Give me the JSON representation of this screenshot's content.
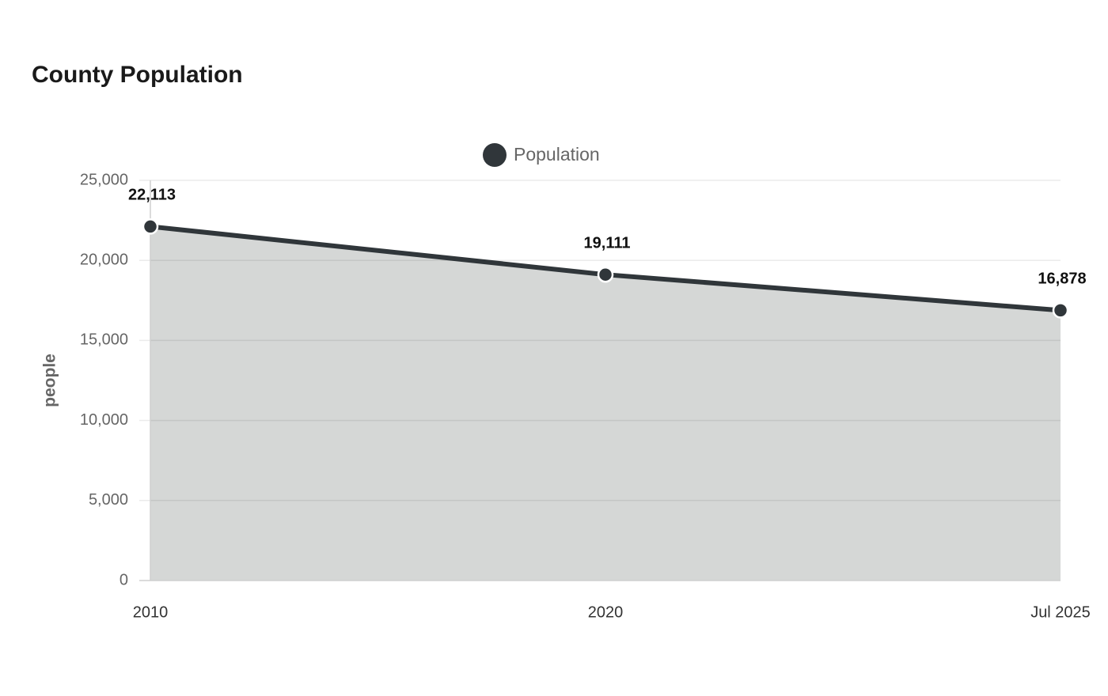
{
  "chart_data": {
    "type": "area",
    "title": "County Population",
    "categories": [
      "2010",
      "2020",
      "Jul 2025"
    ],
    "series": [
      {
        "name": "Population",
        "color": "#30363a",
        "fill": "#d5d7d6",
        "values": [
          22113,
          19111,
          16878
        ],
        "value_labels": [
          "22,113",
          "19,111",
          "16,878"
        ]
      }
    ],
    "ylabel": "people",
    "ylim": [
      0,
      25000
    ],
    "yticks": [
      0,
      {
        "value": 5000,
        "label": "5,000"
      },
      {
        "value": 10000,
        "label": "10,000"
      },
      {
        "value": 15000,
        "label": "15,000"
      },
      {
        "value": 20000,
        "label": "20,000"
      },
      {
        "value": 25000,
        "label": "25,000"
      }
    ],
    "grid": true
  }
}
